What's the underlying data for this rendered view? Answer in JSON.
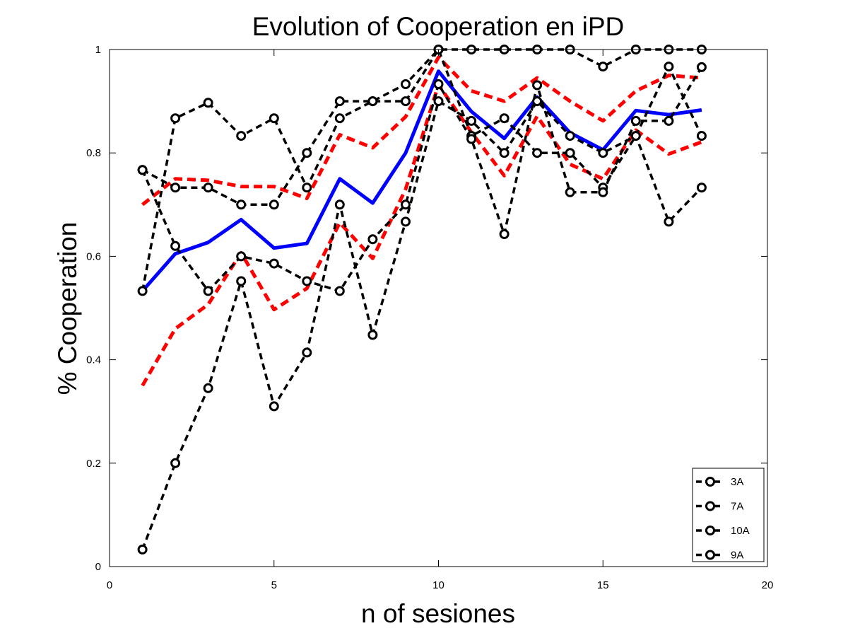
{
  "chart_data": {
    "type": "line",
    "title": "Evolution of Cooperation en iPD",
    "xlabel": "n of sesiones",
    "ylabel": "% Cooperation",
    "xlim": [
      0,
      20
    ],
    "ylim": [
      0,
      1
    ],
    "xticks": [
      0,
      5,
      10,
      15,
      20
    ],
    "yticks": [
      0,
      0.2,
      0.4,
      0.6,
      0.8,
      1
    ],
    "grid": false,
    "legend_position": "bottom-right",
    "x": [
      1,
      2,
      3,
      4,
      5,
      6,
      7,
      8,
      9,
      10,
      11,
      12,
      13,
      14,
      15,
      16,
      17,
      18
    ],
    "series": [
      {
        "name": "3A",
        "style": "dashed-marker",
        "color": "#000000",
        "values": [
          0.533,
          0.867,
          0.897,
          0.833,
          0.867,
          0.733,
          0.867,
          0.9,
          0.9,
          1.0,
          1.0,
          1.0,
          1.0,
          1.0,
          0.967,
          1.0,
          1.0,
          1.0
        ]
      },
      {
        "name": "7A",
        "style": "dashed-marker",
        "color": "#000000",
        "values": [
          0.767,
          0.733,
          0.733,
          0.7,
          0.7,
          0.8,
          0.9,
          0.9,
          0.933,
          1.0,
          0.833,
          0.867,
          0.8,
          0.8,
          0.733,
          0.833,
          0.967,
          0.833
        ]
      },
      {
        "name": "10A",
        "style": "dashed-marker",
        "color": "#000000",
        "values": [
          0.767,
          0.62,
          0.533,
          0.6,
          0.586,
          0.552,
          0.533,
          0.633,
          0.7,
          0.933,
          0.827,
          0.643,
          0.931,
          0.724,
          0.724,
          0.862,
          0.862,
          0.966
        ]
      },
      {
        "name": "9A",
        "style": "dashed-marker",
        "color": "#000000",
        "values": [
          0.033,
          0.2,
          0.345,
          0.552,
          0.31,
          0.414,
          0.7,
          0.448,
          0.667,
          0.9,
          0.862,
          0.8,
          0.9,
          0.833,
          0.8,
          0.833,
          0.667,
          0.733
        ]
      },
      {
        "style": "solid",
        "color": "#0000ff",
        "values": [
          0.533,
          0.605,
          0.627,
          0.671,
          0.616,
          0.625,
          0.75,
          0.703,
          0.8,
          0.958,
          0.88,
          0.828,
          0.908,
          0.839,
          0.806,
          0.882,
          0.874,
          0.883
        ]
      },
      {
        "style": "dashed",
        "color": "#ff0000",
        "values": [
          0.7,
          0.75,
          0.747,
          0.735,
          0.735,
          0.712,
          0.835,
          0.81,
          0.87,
          0.985,
          0.92,
          0.9,
          0.945,
          0.9,
          0.862,
          0.92,
          0.95,
          0.945
        ]
      },
      {
        "style": "dashed",
        "color": "#ff0000",
        "values": [
          0.35,
          0.46,
          0.507,
          0.607,
          0.497,
          0.538,
          0.665,
          0.596,
          0.73,
          0.932,
          0.84,
          0.756,
          0.871,
          0.778,
          0.75,
          0.844,
          0.798,
          0.821
        ]
      }
    ]
  }
}
